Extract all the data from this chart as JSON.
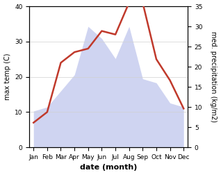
{
  "months": [
    "Jan",
    "Feb",
    "Mar",
    "Apr",
    "May",
    "Jun",
    "Jul",
    "Aug",
    "Sep",
    "Oct",
    "Nov",
    "Dec"
  ],
  "temp": [
    7,
    10,
    24,
    27,
    28,
    33,
    32,
    41,
    41,
    25,
    19,
    11
  ],
  "precip": [
    9,
    10,
    14,
    18,
    30,
    27,
    22,
    30,
    17,
    16,
    11,
    10
  ],
  "temp_color": "#c0392b",
  "precip_color": "#b0b8e8",
  "ylim_left": [
    0,
    40
  ],
  "ylim_right": [
    0,
    35
  ],
  "yticks_left": [
    0,
    10,
    20,
    30,
    40
  ],
  "yticks_right": [
    0,
    5,
    10,
    15,
    20,
    25,
    30,
    35
  ],
  "xlabel": "date (month)",
  "ylabel_left": "max temp (C)",
  "ylabel_right": "med. precipitation (kg/m2)",
  "grid_color": "#d0d0d0",
  "bg_color": "#ffffff",
  "label_fontsize": 7,
  "tick_fontsize": 6.5,
  "xlabel_fontsize": 8,
  "line_width": 1.8
}
